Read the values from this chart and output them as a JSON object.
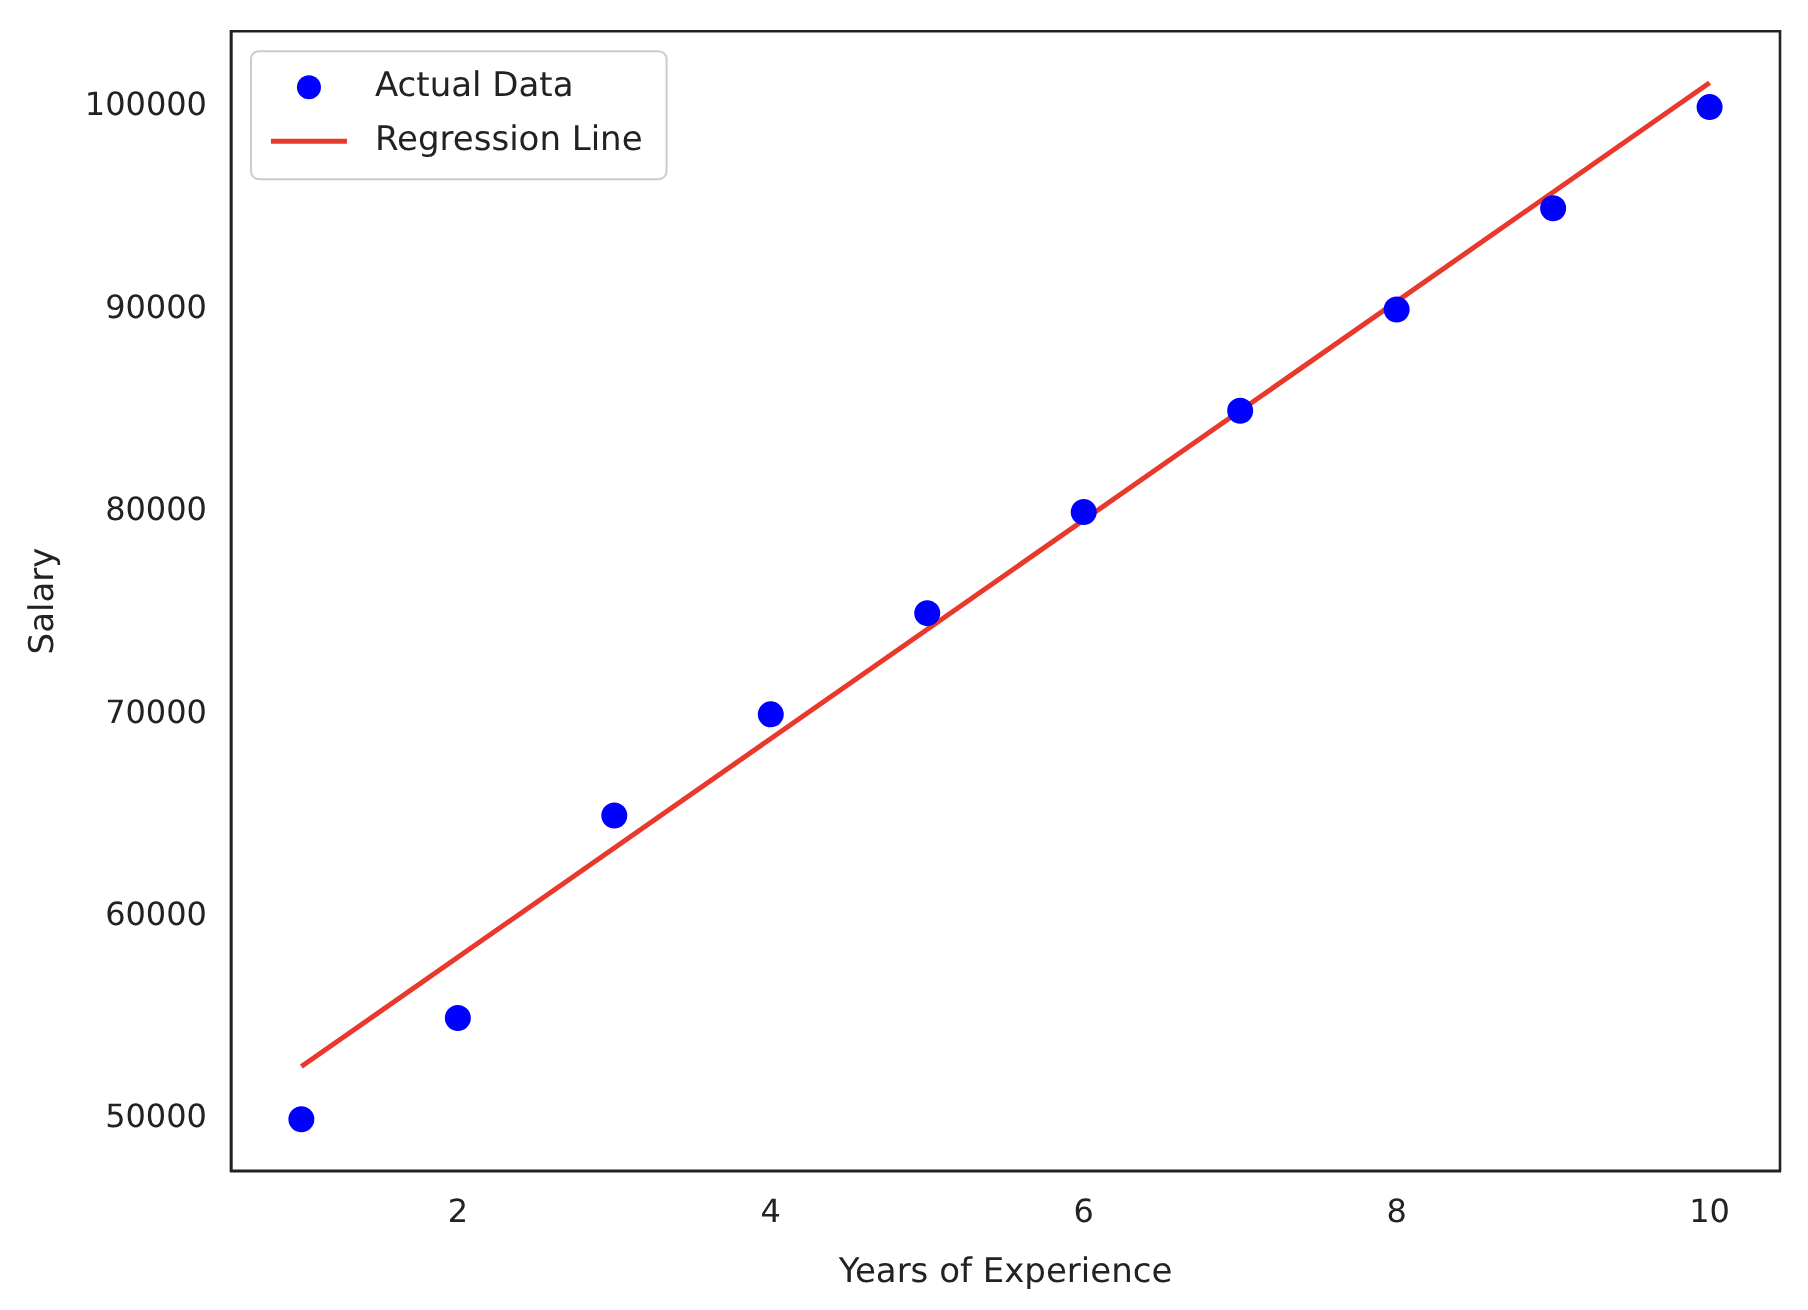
{
  "chart_data": {
    "type": "scatter",
    "xlabel": "Years of Experience",
    "ylabel": "Salary",
    "xlim": [
      0.55,
      10.45
    ],
    "xticks": [
      2,
      4,
      6,
      8,
      10
    ],
    "ylim": [
      47450,
      103750
    ],
    "yticks": [
      50000,
      60000,
      70000,
      80000,
      90000,
      100000
    ],
    "grid": false,
    "legend": "top left",
    "marker": "circle",
    "series": [
      {
        "name": "Actual Data",
        "color": "#0000ff",
        "x": [
          1,
          2,
          3,
          4,
          5,
          6,
          7,
          8,
          9,
          10
        ],
        "values": [
          50000,
          55000,
          65000,
          70000,
          75000,
          80000,
          85000,
          90000,
          95000,
          100000
        ]
      },
      {
        "name": "Regression Line",
        "type": "line",
        "color": "#e8392c",
        "line_style": "solid",
        "marker": "none",
        "x": [
          1,
          10
        ],
        "values": [
          52600,
          101200
        ]
      }
    ]
  }
}
